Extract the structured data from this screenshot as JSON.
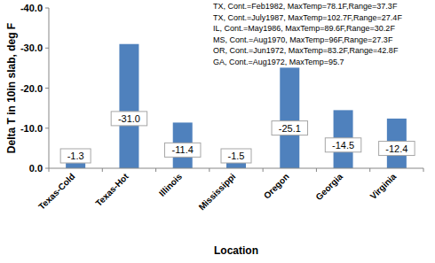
{
  "chart_data": {
    "type": "bar",
    "x_label": "Location",
    "y_label": "Delta T in 10in slab, deg F",
    "categories": [
      "Texas-Cold",
      "Texas-Hot",
      "Illinois",
      "Mississippi",
      "Oregon",
      "Georgia",
      "Virginia"
    ],
    "values": [
      -1.3,
      -31.0,
      -11.4,
      -1.5,
      -25.1,
      -14.5,
      -12.4
    ],
    "value_labels": [
      "-1.3",
      "-31.0",
      "-11.4",
      "-1.5",
      "-25.1",
      "-14.5",
      "-12.4"
    ],
    "color": "#4f81bd",
    "ylim": [
      0,
      -40
    ],
    "yticks": [
      {
        "value": 0,
        "label": "0.0"
      },
      {
        "value": -10,
        "label": "-10.0"
      },
      {
        "value": -20,
        "label": "-20.0"
      },
      {
        "value": -30,
        "label": "-30.0"
      },
      {
        "value": -40,
        "label": "-40.0"
      }
    ],
    "grid": false,
    "data_labels": true,
    "annotations": [
      "TX, Cont.=Feb1982, MaxTemp=78.1F,Range=37.3F",
      "TX, Cont.=July1987, MaxTemp=102.7F,Range=27.4F",
      "IL, Cont.=May1986, MaxTemp=89.6F,Range=30.2F",
      "MS, Cont.=Aug1970, MaxTemp=96F,Range=27.3F",
      "OR, Cont.=Jun1972, MaxTemp=83.2F,Range=42.8F",
      "GA, Cont.=Aug1972, MaxTemp=95.7"
    ]
  }
}
